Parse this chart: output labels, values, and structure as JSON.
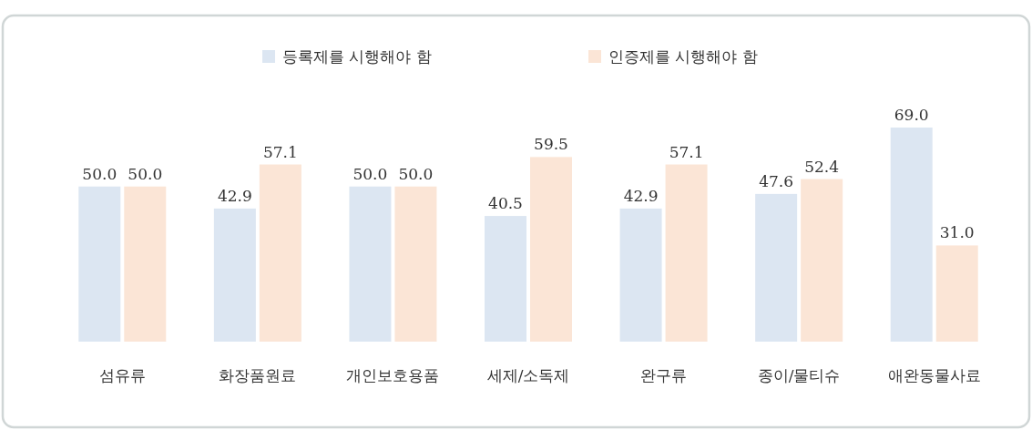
{
  "chart_data": {
    "type": "bar",
    "categories": [
      "섬유류",
      "화장품원료",
      "개인보호용품",
      "세제/소독제",
      "완구류",
      "종이/물티슈",
      "애완동물사료"
    ],
    "series": [
      {
        "name": "등록제를 시행해야 함",
        "color": "#dce6f2",
        "values": [
          50.0,
          42.9,
          50.0,
          40.5,
          42.9,
          47.6,
          69.0
        ],
        "value_labels": [
          "50.0",
          "42.9",
          "50.0",
          "40.5",
          "42.9",
          "47.6",
          "69.0"
        ]
      },
      {
        "name": "인증제를 시행해야 함",
        "color": "#fbe5d6",
        "values": [
          50.0,
          57.1,
          50.0,
          59.5,
          57.1,
          52.4,
          31.0
        ],
        "value_labels": [
          "50.0",
          "57.1",
          "50.0",
          "59.5",
          "57.1",
          "52.4",
          "31.0"
        ]
      }
    ],
    "legend": "top"
  }
}
